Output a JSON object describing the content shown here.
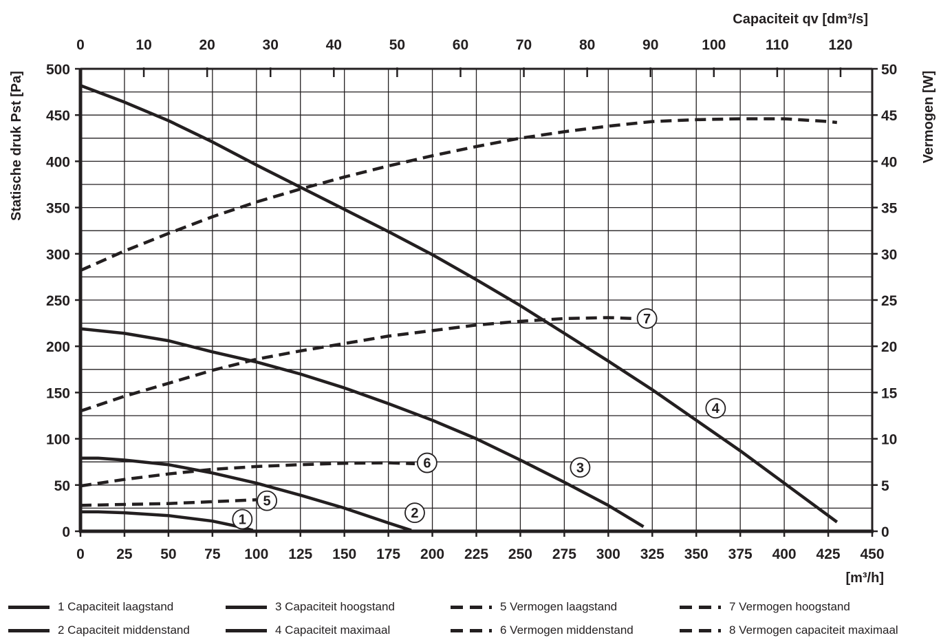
{
  "chart_data": {
    "type": "line",
    "title": "",
    "xlabel": "[m³/h]",
    "x2label": "Capaciteit qv [dm³/s]",
    "ylabel": "Statische druk Pst [Pa]",
    "y2label": "Vermogen [W]",
    "xlim": [
      0,
      450
    ],
    "x2lim": [
      0,
      125
    ],
    "ylim": [
      0,
      500
    ],
    "y2lim": [
      0,
      50
    ],
    "x_ticks": [
      "0",
      "25",
      "50",
      "75",
      "100",
      "125",
      "150",
      "175",
      "200",
      "225",
      "250",
      "275",
      "300",
      "325",
      "350",
      "375",
      "400",
      "425",
      "450"
    ],
    "x2_ticks": [
      "0",
      "10",
      "20",
      "30",
      "40",
      "50",
      "60",
      "70",
      "80",
      "90",
      "100",
      "110",
      "120"
    ],
    "y_ticks": [
      "0",
      "50",
      "100",
      "150",
      "200",
      "250",
      "300",
      "350",
      "400",
      "450",
      "500"
    ],
    "y2_ticks": [
      "0",
      "5",
      "10",
      "15",
      "20",
      "25",
      "30",
      "35",
      "40",
      "45",
      "50"
    ],
    "grid": true,
    "series": [
      {
        "id": "1",
        "style": "solid",
        "axis": "left",
        "points": [
          [
            0,
            21
          ],
          [
            10,
            21
          ],
          [
            25,
            20
          ],
          [
            50,
            17
          ],
          [
            75,
            11
          ],
          [
            90,
            5
          ],
          [
            98,
            1
          ]
        ]
      },
      {
        "id": "2",
        "style": "solid",
        "axis": "left",
        "points": [
          [
            0,
            79
          ],
          [
            10,
            79
          ],
          [
            25,
            77
          ],
          [
            50,
            72
          ],
          [
            75,
            63
          ],
          [
            100,
            52
          ],
          [
            125,
            39
          ],
          [
            150,
            25
          ],
          [
            175,
            9
          ],
          [
            188,
            1
          ]
        ]
      },
      {
        "id": "3",
        "style": "solid",
        "axis": "left",
        "points": [
          [
            0,
            219
          ],
          [
            25,
            214
          ],
          [
            50,
            206
          ],
          [
            75,
            194
          ],
          [
            100,
            183
          ],
          [
            125,
            170
          ],
          [
            150,
            155
          ],
          [
            175,
            138
          ],
          [
            200,
            120
          ],
          [
            225,
            100
          ],
          [
            250,
            77
          ],
          [
            275,
            53
          ],
          [
            300,
            28
          ],
          [
            320,
            5
          ]
        ]
      },
      {
        "id": "4",
        "style": "solid",
        "axis": "left",
        "points": [
          [
            0,
            482
          ],
          [
            25,
            464
          ],
          [
            50,
            444
          ],
          [
            75,
            421
          ],
          [
            100,
            396
          ],
          [
            125,
            372
          ],
          [
            150,
            348
          ],
          [
            175,
            324
          ],
          [
            200,
            299
          ],
          [
            225,
            272
          ],
          [
            250,
            244
          ],
          [
            275,
            214
          ],
          [
            300,
            184
          ],
          [
            325,
            153
          ],
          [
            350,
            120
          ],
          [
            375,
            87
          ],
          [
            400,
            52
          ],
          [
            430,
            10
          ]
        ]
      },
      {
        "id": "5",
        "style": "dashed",
        "axis": "right",
        "points": [
          [
            0,
            2.8
          ],
          [
            25,
            2.9
          ],
          [
            50,
            3.0
          ],
          [
            75,
            3.2
          ],
          [
            100,
            3.4
          ]
        ]
      },
      {
        "id": "6",
        "style": "dashed",
        "axis": "right",
        "points": [
          [
            0,
            4.9
          ],
          [
            25,
            5.6
          ],
          [
            50,
            6.2
          ],
          [
            75,
            6.7
          ],
          [
            100,
            7.0
          ],
          [
            125,
            7.2
          ],
          [
            150,
            7.35
          ],
          [
            175,
            7.4
          ],
          [
            190,
            7.3
          ]
        ]
      },
      {
        "id": "7",
        "style": "dashed",
        "axis": "right",
        "points": [
          [
            0,
            13.0
          ],
          [
            25,
            14.6
          ],
          [
            50,
            16.0
          ],
          [
            75,
            17.4
          ],
          [
            100,
            18.6
          ],
          [
            125,
            19.5
          ],
          [
            150,
            20.3
          ],
          [
            175,
            21.1
          ],
          [
            200,
            21.7
          ],
          [
            225,
            22.3
          ],
          [
            250,
            22.7
          ],
          [
            275,
            23.0
          ],
          [
            300,
            23.1
          ],
          [
            315,
            23.0
          ]
        ]
      },
      {
        "id": "8",
        "style": "dashed",
        "axis": "right",
        "points": [
          [
            0,
            28.2
          ],
          [
            25,
            30.3
          ],
          [
            50,
            32.2
          ],
          [
            75,
            34.0
          ],
          [
            100,
            35.6
          ],
          [
            125,
            37.0
          ],
          [
            150,
            38.3
          ],
          [
            175,
            39.5
          ],
          [
            200,
            40.6
          ],
          [
            225,
            41.6
          ],
          [
            250,
            42.5
          ],
          [
            275,
            43.2
          ],
          [
            300,
            43.8
          ],
          [
            325,
            44.3
          ],
          [
            350,
            44.5
          ],
          [
            375,
            44.6
          ],
          [
            400,
            44.6
          ],
          [
            425,
            44.3
          ],
          [
            430,
            44.2
          ]
        ]
      }
    ],
    "curve_labels": [
      {
        "text": "1",
        "x": 92,
        "y": 13
      },
      {
        "text": "2",
        "x": 190,
        "y": 20
      },
      {
        "text": "3",
        "x": 284,
        "y": 69
      },
      {
        "text": "4",
        "x": 361,
        "y": 133
      },
      {
        "text": "5",
        "x": 106,
        "y": 33
      },
      {
        "text": "6",
        "x": 197,
        "y": 74
      },
      {
        "text": "7",
        "x": 322,
        "y": 230
      }
    ],
    "legend": [
      {
        "label": "1 Capaciteit laagstand",
        "style": "solid"
      },
      {
        "label": "2 Capaciteit middenstand",
        "style": "solid"
      },
      {
        "label": "3 Capaciteit hoogstand",
        "style": "solid"
      },
      {
        "label": "4 Capaciteit maximaal",
        "style": "solid"
      },
      {
        "label": "5 Vermogen laagstand",
        "style": "dashed"
      },
      {
        "label": "6 Vermogen middenstand",
        "style": "dashed"
      },
      {
        "label": "7 Vermogen hoogstand",
        "style": "dashed"
      },
      {
        "label": "8 Vermogen capaciteit maximaal",
        "style": "dashed"
      }
    ],
    "legend_position": "bottom",
    "colors": {
      "ink": "#231f20",
      "grid": "#231f20",
      "background": "#ffffff"
    }
  }
}
